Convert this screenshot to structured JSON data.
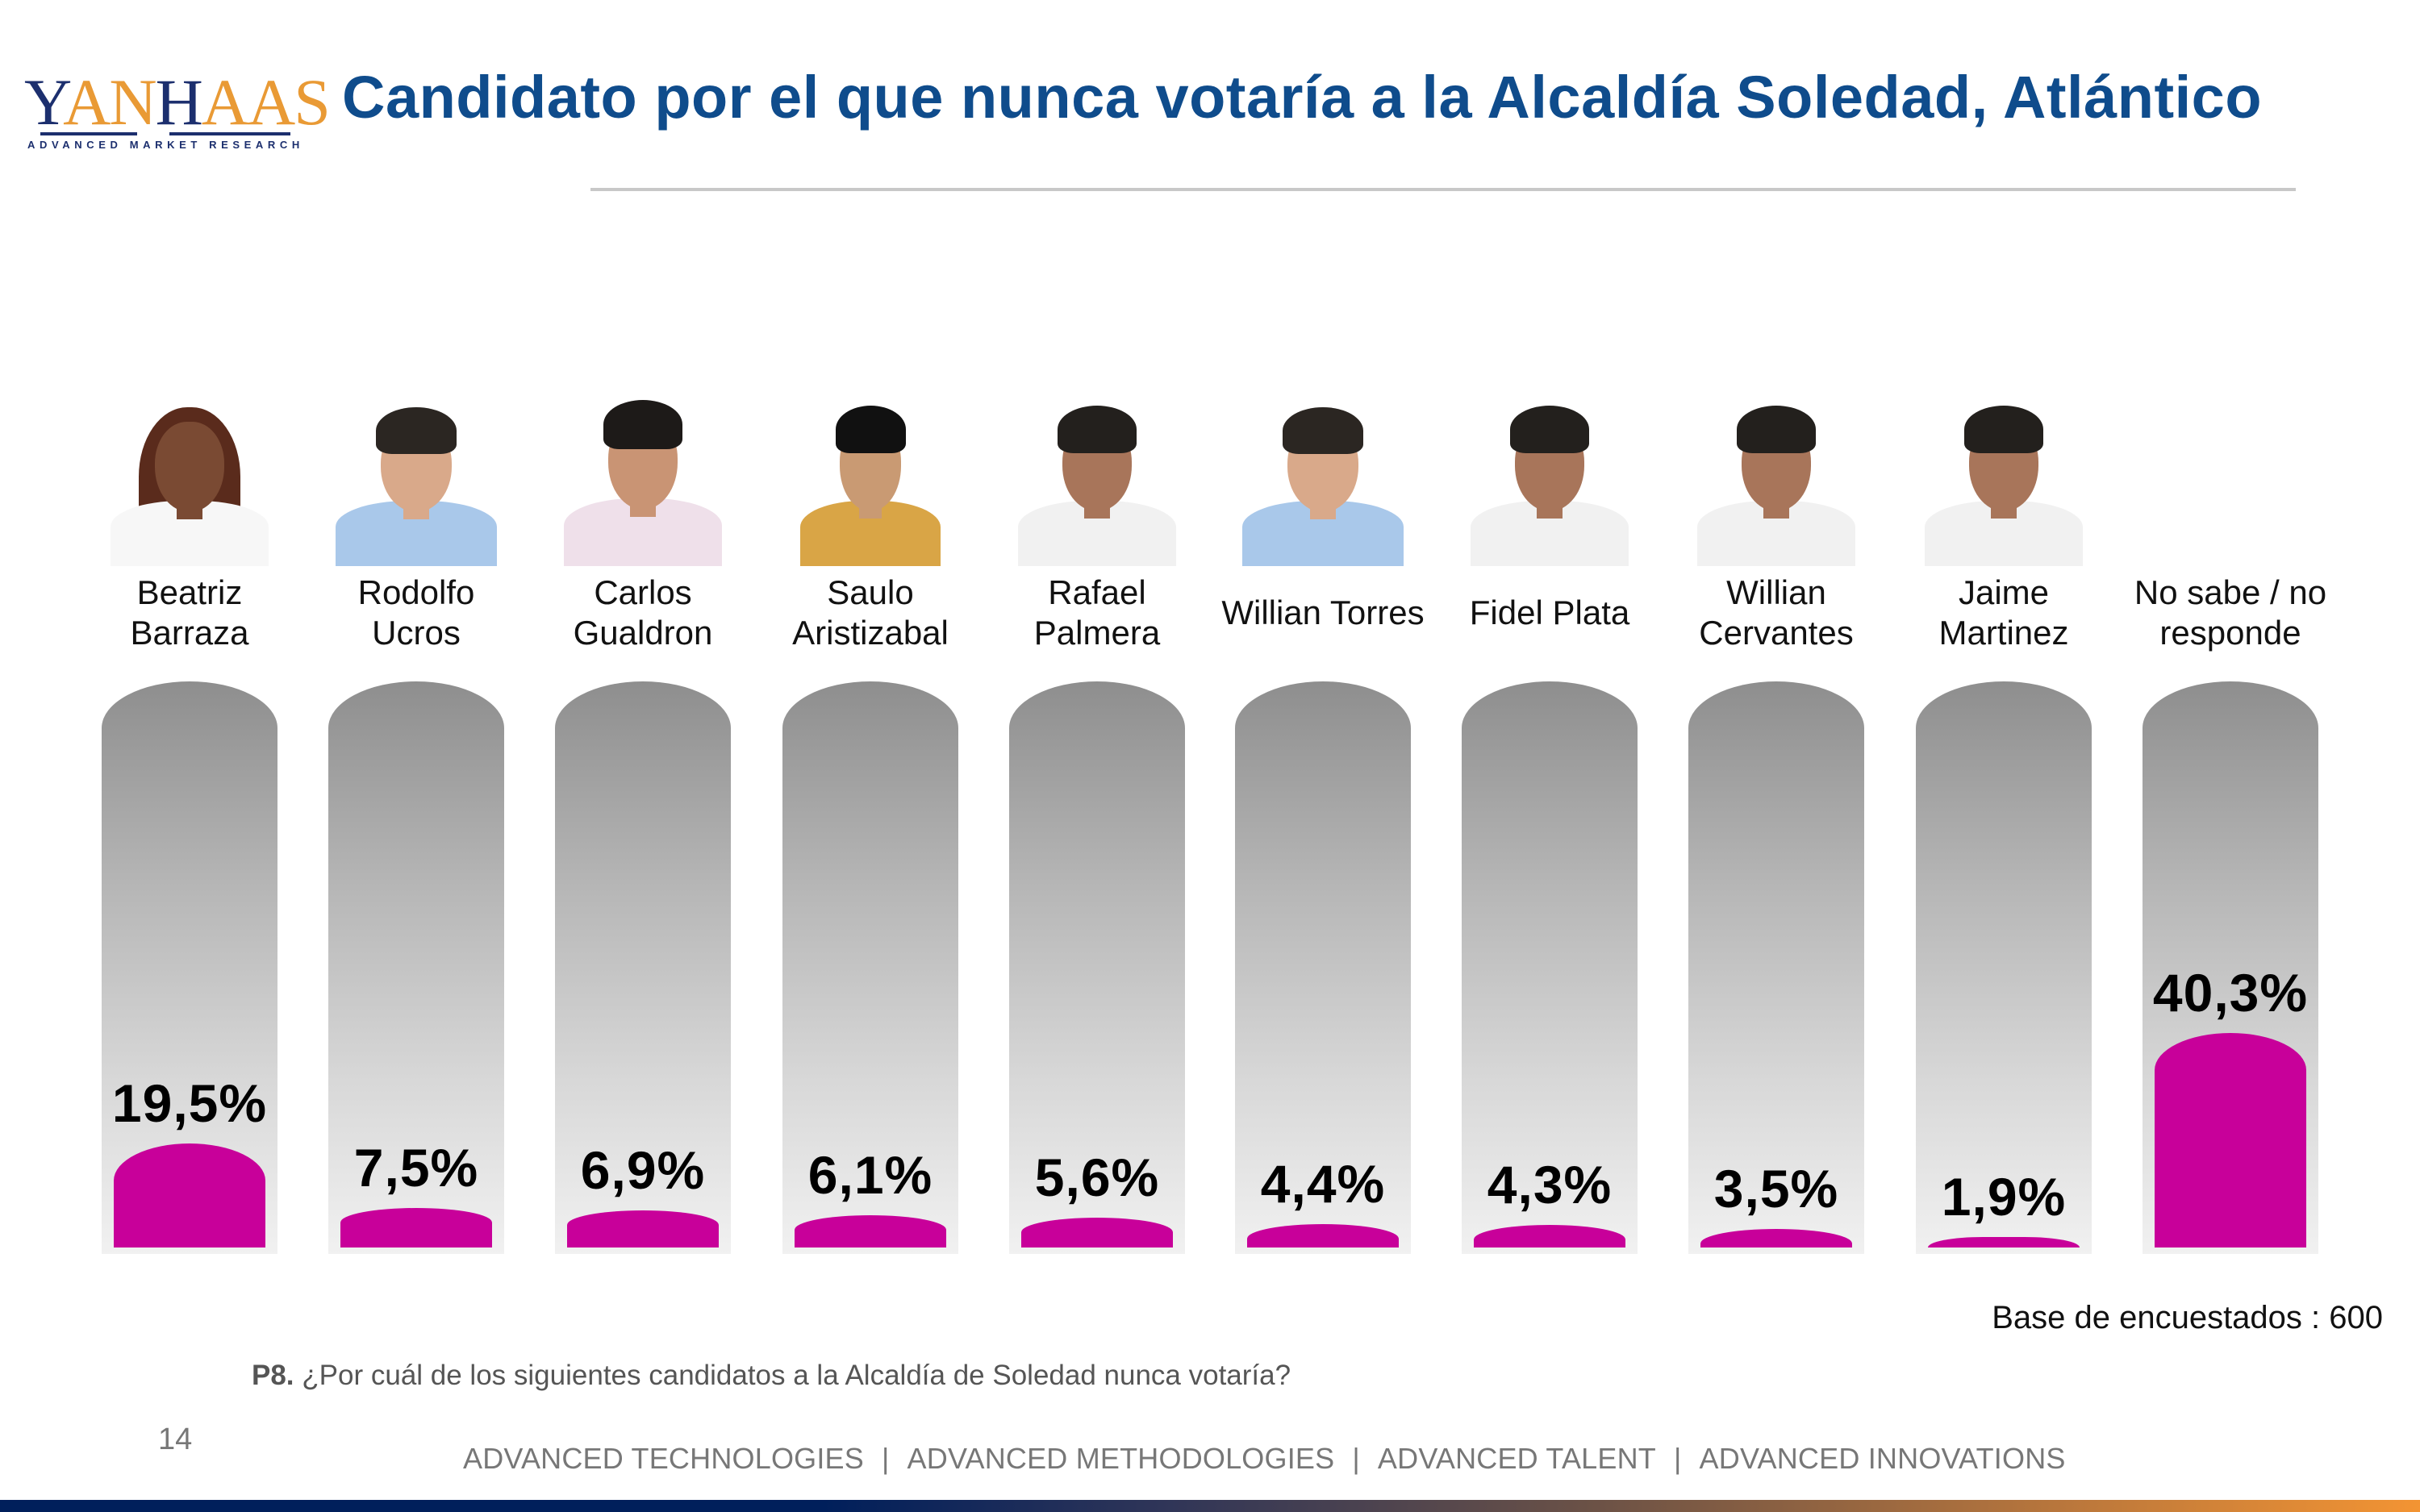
{
  "logo": {
    "wordmark": "YANHAAS",
    "tagline": "ADVANCED MARKET RESEARCH",
    "colors": {
      "navy": "#1c2f6e",
      "gold": "#e99a35"
    }
  },
  "header": {
    "title": "Candidato por el que nunca votaría a la Alcaldía Soledad, Atlántico"
  },
  "colors": {
    "title": "#0f4c8c",
    "bar_fill": "#c8009a",
    "tube_top": "#8e8e8e",
    "tube_bottom": "#f1f1f1"
  },
  "chart_data": {
    "type": "bar",
    "title": "Candidato por el que nunca votaría a la Alcaldía Soledad, Atlántico",
    "xlabel": "",
    "ylabel": "",
    "ylim": [
      0,
      100
    ],
    "grid": false,
    "categories": [
      "Beatriz Barraza",
      "Rodolfo Ucros",
      "Carlos Gualdron",
      "Saulo Aristizabal",
      "Rafael Palmera",
      "Willian Torres",
      "Fidel Plata",
      "Willian Cervantes",
      "Jaime Martinez",
      "No sabe / no responde"
    ],
    "values": [
      19.5,
      7.5,
      6.9,
      6.1,
      5.6,
      4.4,
      4.3,
      3.5,
      1.9,
      40.3
    ],
    "labels": [
      "19,5%",
      "7,5%",
      "6,9%",
      "6,1%",
      "5,6%",
      "4,4%",
      "4,3%",
      "3,5%",
      "1,9%",
      "40,3%"
    ],
    "unit": "%"
  },
  "candidates": [
    {
      "name_line1": "Beatriz",
      "name_line2": "Barraza",
      "photo": "portrait-woman-long-hair",
      "pct": "19,5%"
    },
    {
      "name_line1": "Rodolfo",
      "name_line2": "Ucros",
      "photo": "portrait-man-blue-shirt",
      "pct": "7,5%"
    },
    {
      "name_line1": "Carlos",
      "name_line2": "Gualdron",
      "photo": "portrait-man-pink-shirt",
      "pct": "6,9%"
    },
    {
      "name_line1": "Saulo",
      "name_line2": "Aristizabal",
      "photo": "portrait-man-yellow-shirt",
      "pct": "6,1%"
    },
    {
      "name_line1": "Rafael",
      "name_line2": "Palmera",
      "photo": "portrait-man-white-shirt",
      "pct": "5,6%"
    },
    {
      "name_line1": "Willian Torres",
      "name_line2": "",
      "photo": "portrait-man-blue-shirt",
      "pct": "4,4%"
    },
    {
      "name_line1": "Fidel Plata",
      "name_line2": "",
      "photo": "portrait-man-white-shirt",
      "pct": "4,3%"
    },
    {
      "name_line1": "Willian",
      "name_line2": "Cervantes",
      "photo": "portrait-man-white-shirt",
      "pct": "3,5%"
    },
    {
      "name_line1": "Jaime",
      "name_line2": "Martinez",
      "photo": "portrait-man-white-shirt",
      "pct": "1,9%"
    },
    {
      "name_line1": "No sabe / no",
      "name_line2": "responde",
      "photo": "",
      "pct": "40,3%"
    }
  ],
  "base": "Base de encuestados : 600",
  "question": {
    "code": "P8.",
    "text": "¿Por cuál de los siguientes candidatos a la Alcaldía de Soledad nunca votaría?"
  },
  "page_number": "14",
  "footer": {
    "items": [
      "ADVANCED TECHNOLOGIES",
      "ADVANCED METHODOLOGIES",
      "ADVANCED TALENT",
      "ADVANCED INNOVATIONS"
    ],
    "separator": "|"
  }
}
